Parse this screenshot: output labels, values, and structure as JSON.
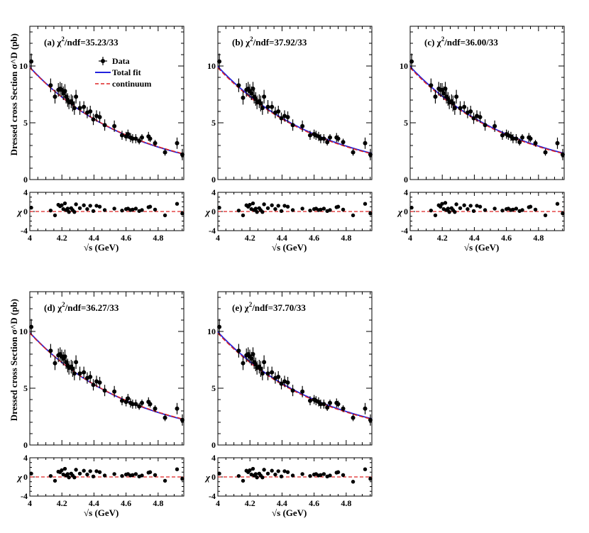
{
  "chart_data": {
    "type": "scatter",
    "x": [
      4.009,
      4.13,
      4.157,
      4.178,
      4.189,
      4.199,
      4.209,
      4.219,
      4.226,
      4.236,
      4.244,
      4.258,
      4.267,
      4.278,
      4.288,
      4.312,
      4.337,
      4.358,
      4.377,
      4.396,
      4.416,
      4.436,
      4.467,
      4.527,
      4.575,
      4.6,
      4.612,
      4.628,
      4.641,
      4.661,
      4.682,
      4.699,
      4.74,
      4.75,
      4.781,
      4.843,
      4.918,
      4.951
    ],
    "xlabel": "√s (GeV)",
    "xlim": [
      4.0,
      4.96
    ],
    "xticks": [
      "4",
      "4.2",
      "4.4",
      "4.6",
      "4.8"
    ],
    "main_ylabel": "Dressed cross Section σ^D (pb)",
    "main_ylim": [
      0,
      13.5
    ],
    "main_yticks": [
      "0",
      "5",
      "10"
    ],
    "resid_ylabel": "χ",
    "resid_ylim": [
      -4,
      4
    ],
    "resid_yticks": [
      "-4",
      "0",
      "4"
    ],
    "legend": {
      "data": "Data",
      "fit": "Total fit",
      "cont": "continuum"
    },
    "colors": {
      "data": "#000000",
      "fit": "#2222dd",
      "cont": "#dd2222"
    },
    "panels": [
      {
        "label": "(a)",
        "chi2_prefix": "χ",
        "chi2_sup": "2",
        "chi2_rest": "/ndf=35.23/33",
        "show_legend": true,
        "show_ylabel": true,
        "fit": {
          "A": 9.9,
          "k": 1.55
        },
        "cont": {
          "A": 9.85,
          "k": 1.53
        },
        "y": [
          10.4,
          8.3,
          7.3,
          7.9,
          8.0,
          7.9,
          7.6,
          7.8,
          7.3,
          7.0,
          6.8,
          6.9,
          6.7,
          6.3,
          7.3,
          6.3,
          6.4,
          5.9,
          6.0,
          5.3,
          5.6,
          5.5,
          4.8,
          4.7,
          3.9,
          3.8,
          4.0,
          3.7,
          3.6,
          3.6,
          3.4,
          3.7,
          3.8,
          3.6,
          3.2,
          2.4,
          3.2,
          2.2
        ],
        "yerr": [
          0.7,
          0.6,
          0.6,
          0.6,
          0.6,
          0.6,
          0.6,
          0.6,
          0.6,
          0.6,
          0.6,
          0.6,
          0.7,
          0.6,
          0.6,
          0.6,
          0.5,
          0.5,
          0.5,
          0.5,
          0.5,
          0.5,
          0.5,
          0.5,
          0.4,
          0.4,
          0.4,
          0.4,
          0.4,
          0.4,
          0.3,
          0.3,
          0.4,
          0.3,
          0.3,
          0.3,
          0.5,
          0.5
        ],
        "chi": [
          0.8,
          0.2,
          -0.8,
          1.4,
          1.1,
          1.3,
          0.5,
          1.7,
          0.3,
          0.6,
          -0.1,
          0.7,
          0.3,
          -0.1,
          1.5,
          0.7,
          1.3,
          0.5,
          1.2,
          0.1,
          1.2,
          1.0,
          0.3,
          0.6,
          0.2,
          0.5,
          0.6,
          0.3,
          0.4,
          0.6,
          0.1,
          0.3,
          0.9,
          1.0,
          0.4,
          -0.8,
          1.6,
          -0.4
        ]
      },
      {
        "label": "(b)",
        "chi2_prefix": "χ",
        "chi2_sup": "2",
        "chi2_rest": "/ndf=37.92/33",
        "show_legend": false,
        "show_ylabel": false,
        "fit": {
          "A": 9.95,
          "k": 1.52
        },
        "cont": {
          "A": 9.85,
          "k": 1.53
        },
        "y": [
          10.4,
          8.3,
          7.2,
          7.9,
          8.0,
          7.8,
          7.6,
          8.0,
          7.3,
          7.1,
          6.8,
          6.9,
          6.7,
          6.3,
          7.3,
          6.4,
          6.4,
          5.9,
          6.0,
          5.4,
          5.6,
          5.5,
          4.8,
          4.7,
          3.9,
          4.0,
          3.9,
          3.8,
          3.6,
          3.6,
          3.3,
          3.7,
          3.7,
          3.6,
          3.3,
          2.4,
          3.2,
          2.2
        ],
        "yerr": [
          0.7,
          0.6,
          0.6,
          0.6,
          0.6,
          0.6,
          0.6,
          0.6,
          0.6,
          0.6,
          0.6,
          0.6,
          0.7,
          0.6,
          0.6,
          0.6,
          0.5,
          0.5,
          0.5,
          0.5,
          0.5,
          0.5,
          0.5,
          0.5,
          0.4,
          0.4,
          0.4,
          0.4,
          0.4,
          0.4,
          0.3,
          0.3,
          0.4,
          0.3,
          0.3,
          0.3,
          0.5,
          0.5
        ],
        "chi": [
          0.8,
          0.2,
          -0.8,
          1.3,
          1.0,
          1.4,
          0.5,
          1.7,
          0.3,
          0.6,
          -0.1,
          0.7,
          0.3,
          -0.1,
          1.5,
          0.7,
          1.3,
          0.5,
          1.2,
          0.1,
          1.2,
          1.0,
          0.3,
          0.6,
          0.2,
          0.5,
          0.6,
          0.3,
          0.4,
          0.6,
          0.1,
          0.3,
          0.9,
          1.0,
          0.4,
          -0.8,
          1.6,
          -0.4
        ]
      },
      {
        "label": "(c)",
        "chi2_prefix": "χ",
        "chi2_sup": "2",
        "chi2_rest": "/ndf=36.00/33",
        "show_legend": false,
        "show_ylabel": false,
        "fit": {
          "A": 9.95,
          "k": 1.52
        },
        "cont": {
          "A": 9.85,
          "k": 1.53
        },
        "y": [
          10.4,
          8.3,
          7.3,
          8.0,
          7.9,
          7.9,
          7.6,
          8.0,
          7.3,
          7.1,
          6.8,
          6.9,
          6.7,
          6.3,
          7.3,
          6.3,
          6.4,
          5.9,
          6.0,
          5.4,
          5.6,
          5.5,
          4.8,
          4.7,
          3.9,
          4.0,
          3.9,
          3.8,
          3.6,
          3.6,
          3.3,
          3.7,
          3.7,
          3.6,
          3.2,
          2.4,
          3.2,
          2.2
        ],
        "yerr": [
          0.7,
          0.6,
          0.6,
          0.6,
          0.6,
          0.6,
          0.6,
          0.6,
          0.6,
          0.6,
          0.6,
          0.6,
          0.7,
          0.6,
          0.6,
          0.6,
          0.5,
          0.5,
          0.5,
          0.5,
          0.5,
          0.5,
          0.5,
          0.5,
          0.4,
          0.4,
          0.4,
          0.4,
          0.4,
          0.4,
          0.3,
          0.3,
          0.4,
          0.3,
          0.3,
          0.3,
          0.5,
          0.5
        ],
        "chi": [
          0.8,
          0.2,
          -0.8,
          1.3,
          1.0,
          1.6,
          0.5,
          1.8,
          0.3,
          0.6,
          -0.1,
          0.7,
          0.3,
          -0.1,
          1.5,
          0.7,
          1.3,
          0.5,
          1.2,
          0.1,
          1.2,
          1.0,
          0.3,
          0.6,
          0.2,
          0.5,
          0.6,
          0.3,
          0.4,
          0.6,
          0.1,
          0.3,
          0.9,
          1.0,
          0.4,
          -0.8,
          1.6,
          -0.4
        ]
      },
      {
        "label": "(d)",
        "chi2_prefix": "χ",
        "chi2_sup": "2",
        "chi2_rest": "/ndf=36.27/33",
        "show_legend": false,
        "show_ylabel": true,
        "fit": {
          "A": 9.9,
          "k": 1.55
        },
        "cont": {
          "A": 9.85,
          "k": 1.53
        },
        "y": [
          10.4,
          8.3,
          7.2,
          7.9,
          8.0,
          7.8,
          7.6,
          7.8,
          7.3,
          7.0,
          6.8,
          6.9,
          6.7,
          6.3,
          7.3,
          6.3,
          6.4,
          5.9,
          6.0,
          5.3,
          5.6,
          5.5,
          4.8,
          4.7,
          3.9,
          3.8,
          4.1,
          3.7,
          3.6,
          3.6,
          3.4,
          3.7,
          3.8,
          3.6,
          3.2,
          2.4,
          3.2,
          2.2
        ],
        "yerr": [
          0.7,
          0.6,
          0.6,
          0.6,
          0.6,
          0.6,
          0.6,
          0.6,
          0.6,
          0.6,
          0.6,
          0.6,
          0.7,
          0.6,
          0.6,
          0.6,
          0.5,
          0.5,
          0.5,
          0.5,
          0.5,
          0.5,
          0.5,
          0.5,
          0.4,
          0.4,
          0.4,
          0.4,
          0.4,
          0.4,
          0.3,
          0.3,
          0.4,
          0.3,
          0.3,
          0.3,
          0.5,
          0.5
        ],
        "chi": [
          0.7,
          0.2,
          -0.8,
          1.1,
          1.0,
          1.4,
          0.5,
          1.7,
          0.3,
          0.6,
          -0.1,
          0.7,
          0.3,
          -0.1,
          1.5,
          0.7,
          1.3,
          0.5,
          1.2,
          0.1,
          1.2,
          1.0,
          0.3,
          0.6,
          0.2,
          0.5,
          0.6,
          0.3,
          0.4,
          0.6,
          0.1,
          0.3,
          0.9,
          1.0,
          0.4,
          -0.8,
          1.6,
          -0.4
        ]
      },
      {
        "label": "(e)",
        "chi2_prefix": "χ",
        "chi2_sup": "2",
        "chi2_rest": "/ndf=37.70/33",
        "show_legend": false,
        "show_ylabel": false,
        "fit": {
          "A": 9.95,
          "k": 1.52
        },
        "cont": {
          "A": 9.85,
          "k": 1.53
        },
        "y": [
          10.4,
          8.3,
          7.2,
          7.9,
          8.0,
          7.8,
          7.6,
          8.0,
          7.3,
          7.1,
          6.8,
          6.9,
          6.7,
          6.3,
          7.3,
          6.3,
          6.4,
          5.9,
          6.0,
          5.4,
          5.6,
          5.5,
          4.8,
          4.7,
          3.9,
          4.0,
          3.9,
          3.8,
          3.6,
          3.6,
          3.3,
          3.7,
          3.7,
          3.6,
          3.2,
          2.4,
          3.2,
          2.2
        ],
        "yerr": [
          0.7,
          0.6,
          0.6,
          0.6,
          0.6,
          0.6,
          0.6,
          0.6,
          0.6,
          0.6,
          0.6,
          0.6,
          0.7,
          0.6,
          0.6,
          0.6,
          0.5,
          0.5,
          0.5,
          0.5,
          0.5,
          0.5,
          0.5,
          0.5,
          0.4,
          0.4,
          0.4,
          0.4,
          0.4,
          0.4,
          0.3,
          0.3,
          0.4,
          0.3,
          0.3,
          0.3,
          0.5,
          0.5
        ],
        "chi": [
          0.7,
          0.2,
          -0.8,
          1.3,
          1.0,
          1.4,
          0.5,
          1.7,
          0.3,
          0.6,
          -0.1,
          0.7,
          0.3,
          -0.1,
          1.5,
          0.7,
          1.3,
          0.5,
          1.2,
          0.1,
          1.2,
          1.0,
          0.3,
          0.6,
          0.2,
          0.5,
          0.6,
          0.3,
          0.4,
          0.6,
          0.1,
          0.3,
          0.9,
          1.0,
          0.4,
          -1.0,
          1.6,
          -0.4
        ]
      }
    ]
  }
}
